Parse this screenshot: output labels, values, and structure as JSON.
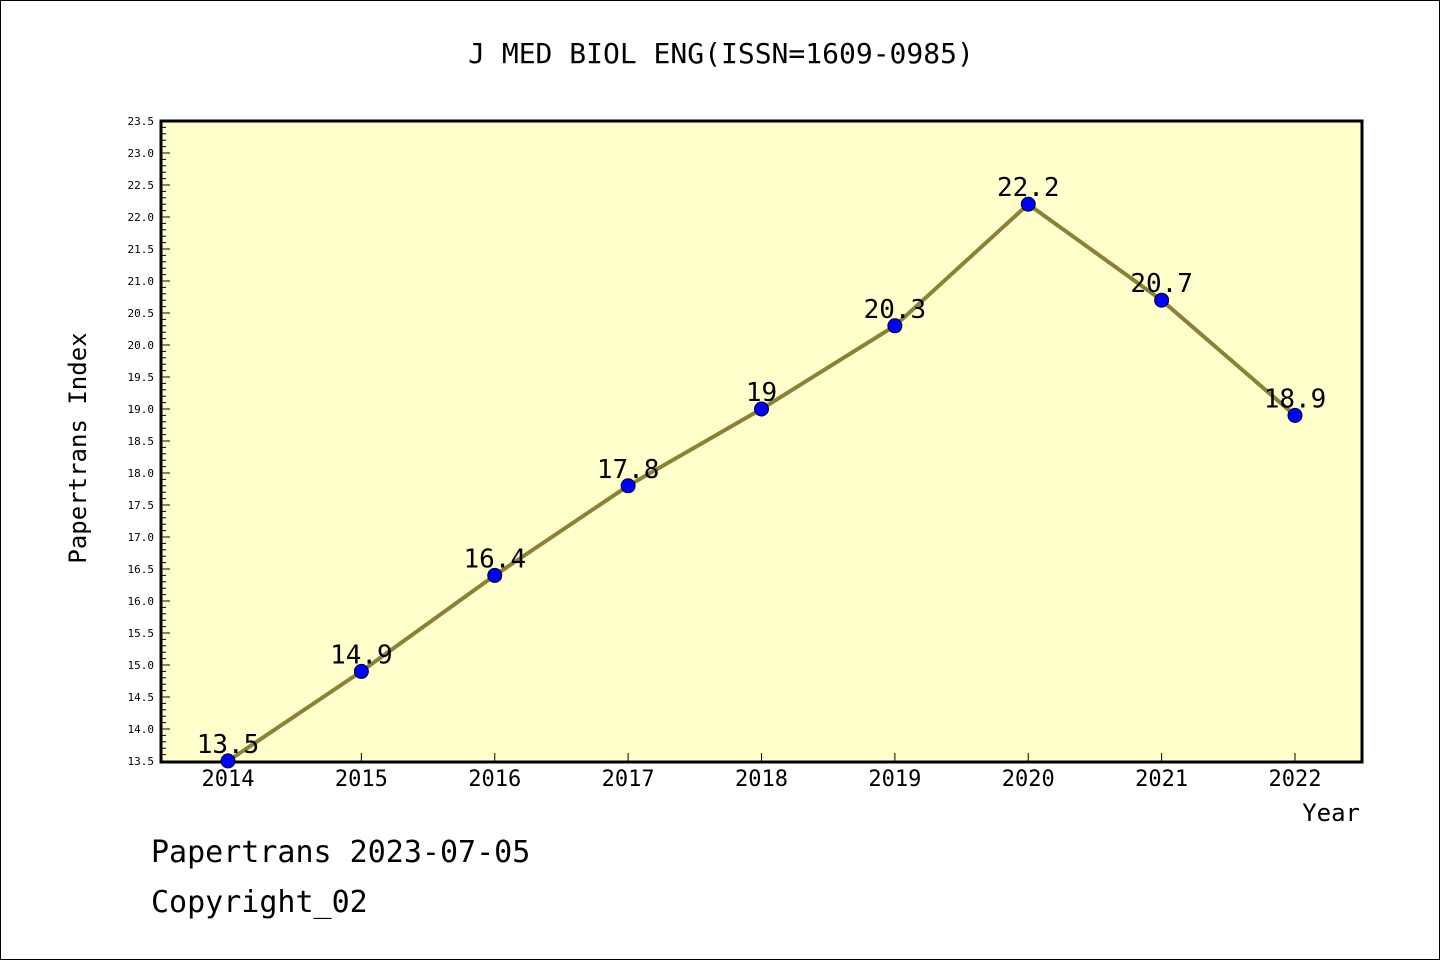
{
  "chart_data": {
    "type": "line",
    "title": "J MED BIOL ENG(ISSN=1609-0985)",
    "xlabel": "Year",
    "ylabel": "Papertrans Index",
    "x": [
      "2014",
      "2015",
      "2016",
      "2017",
      "2018",
      "2019",
      "2020",
      "2021",
      "2022"
    ],
    "series": [
      {
        "values": [
          13.5,
          14.9,
          16.4,
          17.8,
          19.0,
          20.3,
          22.2,
          20.7,
          18.9
        ],
        "data_labels": [
          "13.5",
          "14.9",
          "16.4",
          "17.8",
          "19",
          "20.3",
          "22.2",
          "20.7",
          "18.9"
        ]
      }
    ],
    "ylim": [
      13.5,
      23.5
    ],
    "yticks": [
      "13.5",
      "14.0",
      "14.5",
      "15.0",
      "15.5",
      "16.0",
      "16.5",
      "17.0",
      "17.5",
      "18.0",
      "18.5",
      "19.0",
      "19.5",
      "20.0",
      "20.5",
      "21.0",
      "21.5",
      "22.0",
      "22.5",
      "23.0",
      "23.5"
    ],
    "grid": false,
    "legend": "none",
    "colors": {
      "plot_background": "#ffffcc",
      "line": "#8b8237",
      "marker": "#0000ff"
    }
  },
  "footer": {
    "date_text": "Papertrans 2023-07-05",
    "copyright_text": "Copyright_02"
  }
}
